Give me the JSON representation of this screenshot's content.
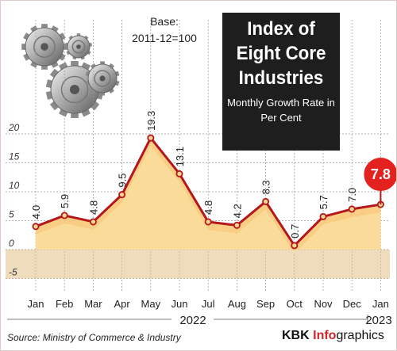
{
  "chart_data": {
    "type": "area",
    "title": "Index of Eight Core Industries",
    "subtitle": "Monthly Growth Rate in Per Cent",
    "base_note": [
      "Base:",
      "2011-12=100"
    ],
    "categories": [
      "Jan",
      "Feb",
      "Mar",
      "Apr",
      "May",
      "Jun",
      "Jul",
      "Aug",
      "Sep",
      "Oct",
      "Nov",
      "Dec",
      "Jan"
    ],
    "values": [
      4.0,
      5.9,
      4.8,
      9.5,
      19.3,
      13.1,
      4.8,
      4.2,
      8.3,
      0.7,
      5.7,
      7.0,
      7.8
    ],
    "value_labels": [
      "4.0",
      "5.9",
      "4.8",
      "9.5",
      "19.3",
      "13.1",
      "4.8",
      "4.2",
      "8.3",
      "0.7",
      "5.7",
      "7.0",
      "7.8"
    ],
    "highlight_index": 12,
    "year_labels": [
      "2022",
      "2023"
    ],
    "yticks": [
      -5,
      0,
      5,
      10,
      15,
      20
    ],
    "ytick_labels": [
      "-5",
      "0",
      "5",
      "10",
      "15",
      "20"
    ],
    "ylim": [
      -5,
      22
    ],
    "grid": true,
    "colors": {
      "line": "#b5161b",
      "area": "#f9c878",
      "area_light": "#fbdfa2",
      "negative_band": "#e0bf87",
      "highlight": "#e3211f",
      "grid": "#999999"
    }
  },
  "source": "Source: Ministry of Commerce & Industry",
  "credit": {
    "brand": "KBK",
    "info": "Info",
    "graphics": "graphics"
  },
  "decoration": {
    "icon": "gears-icon"
  }
}
